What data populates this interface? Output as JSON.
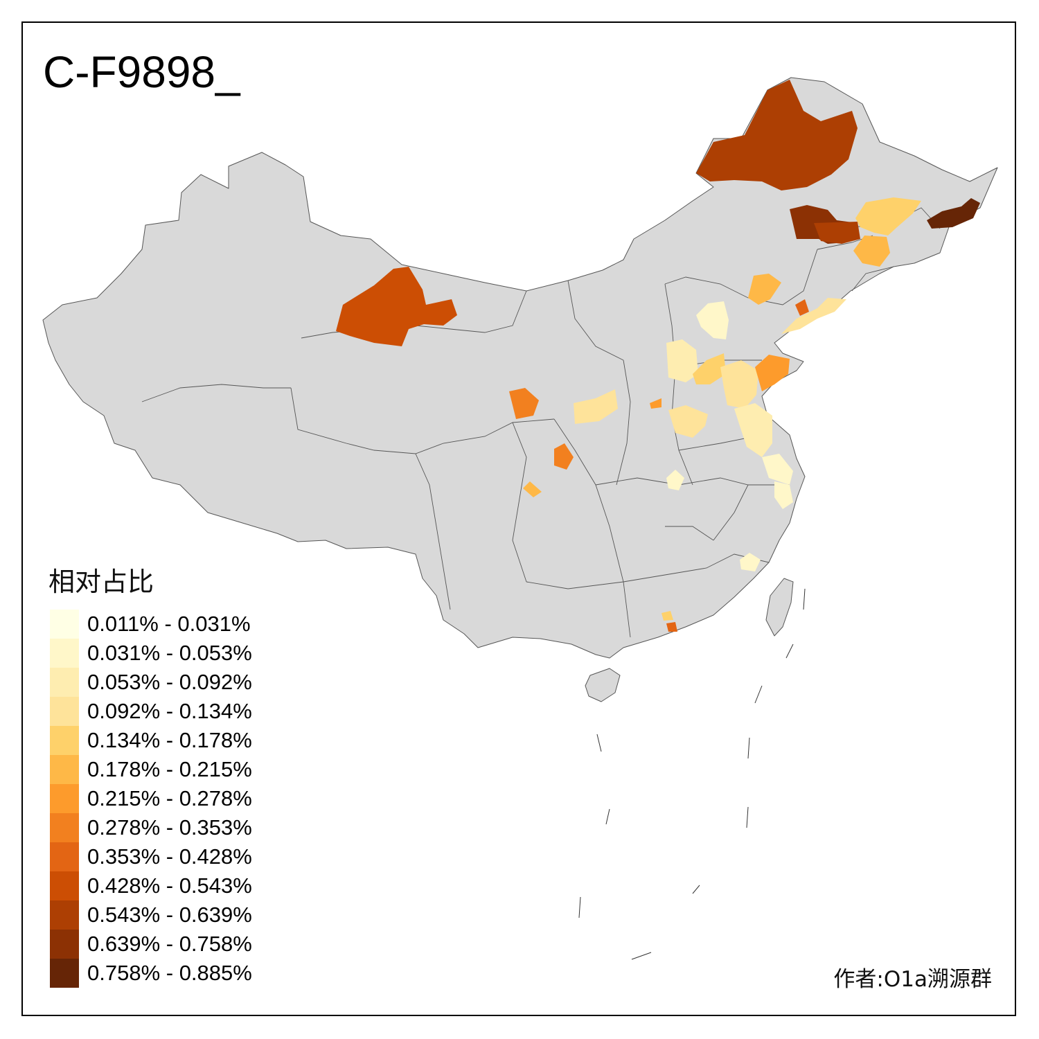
{
  "title": "C-F9898_",
  "legend": {
    "title": "相对占比",
    "items": [
      {
        "label": "0.011% - 0.031%",
        "color": "#FFFFE5"
      },
      {
        "label": "0.031% - 0.053%",
        "color": "#FFF7C9"
      },
      {
        "label": "0.053% - 0.092%",
        "color": "#FEEDB0"
      },
      {
        "label": "0.092% - 0.134%",
        "color": "#FEE39A"
      },
      {
        "label": "0.134% - 0.178%",
        "color": "#FED16A"
      },
      {
        "label": "0.178% - 0.215%",
        "color": "#FEB847"
      },
      {
        "label": "0.215% - 0.278%",
        "color": "#FD9B2C"
      },
      {
        "label": "0.278% - 0.353%",
        "color": "#F2801F"
      },
      {
        "label": "0.353% - 0.428%",
        "color": "#E36514"
      },
      {
        "label": "0.428% - 0.543%",
        "color": "#CC4E04"
      },
      {
        "label": "0.543% - 0.639%",
        "color": "#AD3F03"
      },
      {
        "label": "0.639% - 0.758%",
        "color": "#8C3104"
      },
      {
        "label": "0.758% - 0.885%",
        "color": "#662506"
      }
    ]
  },
  "author": "作者:O1a溯源群",
  "colors": {
    "base_land": "#D9D9D9",
    "border": "#555555",
    "no_data": "#D9D9D9"
  }
}
